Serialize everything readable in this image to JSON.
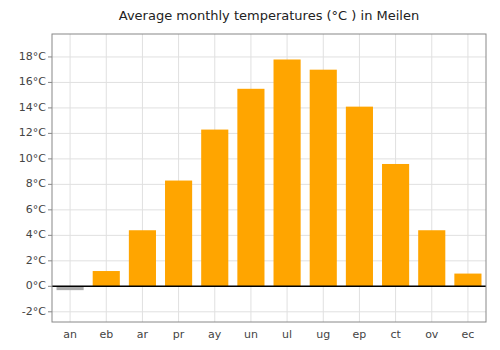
{
  "chart_data": {
    "type": "bar",
    "title": "Average monthly temperatures (°C ) in Meilen",
    "categories": [
      "an",
      "eb",
      "ar",
      "pr",
      "ay",
      "un",
      "ul",
      "ug",
      "ep",
      "ct",
      "ov",
      "ec"
    ],
    "values": [
      -0.3,
      1.2,
      4.4,
      8.3,
      12.3,
      15.5,
      17.8,
      17.0,
      14.1,
      9.6,
      4.4,
      1.0
    ],
    "colors": [
      "#aaaaaa",
      "#FFA500",
      "#FFA500",
      "#FFA500",
      "#FFA500",
      "#FFA500",
      "#FFA500",
      "#FFA500",
      "#FFA500",
      "#FFA500",
      "#FFA500",
      "#FFA500"
    ],
    "ylim": [
      -2.8,
      19.8
    ],
    "yticks": [
      {
        "value": -2,
        "label": "-2°C"
      },
      {
        "value": 0,
        "label": "0°C"
      },
      {
        "value": 2,
        "label": "2°C"
      },
      {
        "value": 4,
        "label": "4°C"
      },
      {
        "value": 6,
        "label": "6°C"
      },
      {
        "value": 8,
        "label": "8°C"
      },
      {
        "value": 10,
        "label": "10°C"
      },
      {
        "value": 12,
        "label": "12°C"
      },
      {
        "value": 14,
        "label": "14°C"
      },
      {
        "value": 16,
        "label": "16°C"
      },
      {
        "value": 18,
        "label": "18°C"
      }
    ],
    "grid": true
  }
}
